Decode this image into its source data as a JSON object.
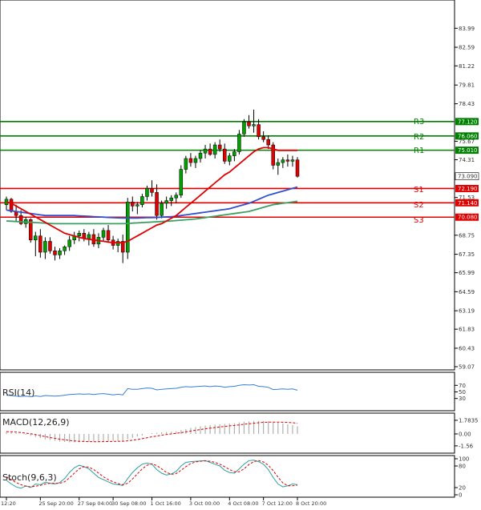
{
  "chart_data": {
    "type": "candlestick",
    "main": {
      "ylim": [
        59.07,
        85.6
      ],
      "y_ticks": [
        83.99,
        82.59,
        81.22,
        79.81,
        78.43,
        75.67,
        74.31,
        71.53,
        68.75,
        67.35,
        65.99,
        64.59,
        63.19,
        61.83,
        60.43,
        59.07
      ],
      "current_price": 73.09,
      "levels": [
        {
          "name": "R3",
          "value": 77.12,
          "color": "#008000"
        },
        {
          "name": "R2",
          "value": 76.06,
          "color": "#008000"
        },
        {
          "name": "R1",
          "value": 75.01,
          "color": "#008000"
        },
        {
          "name": "S1",
          "value": 72.19,
          "color": "#e00000"
        },
        {
          "name": "S2",
          "value": 71.14,
          "color": "#e00000"
        },
        {
          "name": "S3",
          "value": 70.08,
          "color": "#e00000"
        }
      ],
      "level_labels": {
        "R3": "77.120",
        "R2": "76.060",
        "R1": "75.010",
        "S1": "72.190",
        "S2": "71.140",
        "S3": "70.080"
      },
      "current_label": "73.090",
      "candles": [
        [
          71.0,
          71.6,
          70.6,
          71.4
        ],
        [
          71.4,
          71.5,
          70.4,
          70.5
        ],
        [
          70.5,
          71.0,
          69.8,
          70.2
        ],
        [
          70.2,
          70.6,
          69.5,
          69.6
        ],
        [
          69.6,
          70.1,
          69.3,
          69.9
        ],
        [
          69.9,
          70.0,
          68.2,
          68.4
        ],
        [
          68.4,
          69.0,
          67.2,
          68.7
        ],
        [
          68.7,
          69.2,
          67.1,
          67.5
        ],
        [
          67.5,
          68.6,
          67.0,
          68.3
        ],
        [
          68.3,
          68.6,
          67.4,
          67.6
        ],
        [
          67.6,
          67.9,
          66.9,
          67.3
        ],
        [
          67.3,
          67.8,
          67.0,
          67.6
        ],
        [
          67.6,
          68.0,
          67.3,
          67.9
        ],
        [
          67.9,
          68.7,
          67.6,
          68.4
        ],
        [
          68.4,
          69.0,
          68.1,
          68.7
        ],
        [
          68.7,
          69.1,
          68.3,
          68.9
        ],
        [
          68.9,
          69.2,
          68.3,
          68.5
        ],
        [
          68.5,
          69.0,
          68.0,
          68.8
        ],
        [
          68.8,
          69.2,
          67.9,
          68.1
        ],
        [
          68.1,
          68.9,
          67.8,
          68.6
        ],
        [
          68.6,
          69.3,
          68.3,
          69.1
        ],
        [
          69.1,
          69.5,
          68.2,
          68.4
        ],
        [
          68.4,
          68.7,
          67.7,
          68.0
        ],
        [
          68.0,
          68.5,
          67.5,
          68.3
        ],
        [
          68.3,
          68.8,
          66.7,
          67.5
        ],
        [
          67.5,
          71.5,
          67.0,
          71.2
        ],
        [
          71.2,
          71.6,
          70.5,
          70.9
        ],
        [
          70.9,
          71.2,
          70.3,
          71.0
        ],
        [
          71.0,
          71.8,
          70.8,
          71.6
        ],
        [
          71.6,
          72.4,
          71.3,
          72.2
        ],
        [
          72.2,
          72.8,
          71.6,
          71.9
        ],
        [
          71.9,
          72.5,
          69.9,
          70.2
        ],
        [
          70.2,
          71.3,
          70.0,
          71.1
        ],
        [
          71.1,
          71.6,
          70.7,
          71.3
        ],
        [
          71.3,
          71.7,
          70.9,
          71.5
        ],
        [
          71.5,
          71.9,
          71.1,
          71.7
        ],
        [
          71.7,
          73.9,
          71.5,
          73.6
        ],
        [
          73.6,
          74.6,
          73.3,
          74.4
        ],
        [
          74.4,
          74.8,
          73.8,
          74.1
        ],
        [
          74.1,
          74.6,
          73.7,
          74.4
        ],
        [
          74.4,
          75.0,
          74.1,
          74.8
        ],
        [
          74.8,
          75.4,
          74.4,
          75.1
        ],
        [
          75.1,
          75.5,
          74.6,
          74.7
        ],
        [
          74.7,
          75.6,
          74.4,
          75.4
        ],
        [
          75.4,
          75.8,
          74.9,
          75.1
        ],
        [
          75.1,
          75.5,
          74.0,
          74.2
        ],
        [
          74.2,
          74.8,
          73.9,
          74.6
        ],
        [
          74.6,
          75.1,
          74.2,
          74.9
        ],
        [
          74.9,
          76.5,
          74.7,
          76.2
        ],
        [
          76.2,
          77.3,
          76.0,
          77.1
        ],
        [
          77.1,
          77.6,
          76.6,
          76.8
        ],
        [
          76.8,
          78.0,
          76.3,
          76.9
        ],
        [
          76.9,
          77.3,
          75.8,
          76.0
        ],
        [
          76.0,
          76.4,
          75.6,
          75.8
        ],
        [
          75.8,
          76.1,
          75.1,
          75.4
        ],
        [
          75.4,
          75.6,
          73.6,
          73.9
        ],
        [
          73.9,
          74.4,
          73.2,
          74.1
        ],
        [
          74.1,
          74.5,
          73.7,
          74.3
        ],
        [
          74.3,
          74.7,
          73.8,
          74.2
        ],
        [
          74.2,
          74.6,
          73.8,
          74.3
        ],
        [
          74.3,
          74.5,
          73.0,
          73.09
        ]
      ],
      "ma_red": [
        71.2,
        71.1,
        70.9,
        70.7,
        70.5,
        70.3,
        70.1,
        69.9,
        69.7,
        69.5,
        69.3,
        69.1,
        68.9,
        68.8,
        68.7,
        68.6,
        68.5,
        68.45,
        68.4,
        68.35,
        68.3,
        68.25,
        68.2,
        68.2,
        68.2,
        68.3,
        68.5,
        68.7,
        68.9,
        69.1,
        69.3,
        69.5,
        69.6,
        69.8,
        70.0,
        70.2,
        70.5,
        70.8,
        71.1,
        71.4,
        71.7,
        72.0,
        72.3,
        72.6,
        72.9,
        73.2,
        73.4,
        73.7,
        74.0,
        74.3,
        74.6,
        74.9,
        75.1,
        75.2,
        75.2,
        75.1,
        75.0,
        75.0,
        75.0,
        75.0,
        75.0
      ],
      "ma_blue": [
        70.6,
        70.55,
        70.5,
        70.45,
        70.4,
        70.35,
        70.3,
        70.25,
        70.2,
        70.2,
        70.2,
        70.2,
        70.2,
        70.2,
        70.2,
        70.18,
        70.16,
        70.14,
        70.12,
        70.1,
        70.08,
        70.06,
        70.04,
        70.03,
        70.02,
        70.02,
        70.02,
        70.02,
        70.03,
        70.04,
        70.05,
        70.06,
        70.08,
        70.1,
        70.12,
        70.15,
        70.2,
        70.25,
        70.3,
        70.35,
        70.4,
        70.45,
        70.5,
        70.55,
        70.6,
        70.65,
        70.7,
        70.8,
        70.9,
        71.0,
        71.1,
        71.25,
        71.4,
        71.55,
        71.7,
        71.8,
        71.9,
        72.0,
        72.1,
        72.2,
        72.3
      ],
      "ma_green": [
        69.8,
        69.78,
        69.76,
        69.74,
        69.72,
        69.7,
        69.68,
        69.66,
        69.64,
        69.62,
        69.6,
        69.6,
        69.6,
        69.6,
        69.6,
        69.6,
        69.6,
        69.6,
        69.6,
        69.6,
        69.6,
        69.6,
        69.6,
        69.6,
        69.6,
        69.62,
        69.64,
        69.66,
        69.68,
        69.7,
        69.72,
        69.74,
        69.76,
        69.78,
        69.8,
        69.83,
        69.86,
        69.89,
        69.92,
        69.95,
        70.0,
        70.05,
        70.1,
        70.15,
        70.2,
        70.25,
        70.3,
        70.35,
        70.4,
        70.45,
        70.5,
        70.6,
        70.7,
        70.8,
        70.9,
        71.0,
        71.05,
        71.1,
        71.15,
        71.2,
        71.25
      ]
    },
    "rsi": {
      "label": "RSI(14)",
      "ylim": [
        0,
        100
      ],
      "y_ticks": [
        "70",
        "50",
        "30"
      ],
      "tick_values": [
        70,
        50,
        30
      ],
      "values": [
        40,
        39,
        37,
        36,
        37,
        35,
        38,
        36,
        39,
        38,
        37,
        38,
        40,
        42,
        43,
        44,
        43,
        44,
        42,
        44,
        45,
        43,
        41,
        43,
        41,
        60,
        58,
        58,
        60,
        62,
        61,
        56,
        58,
        59,
        60,
        61,
        64,
        66,
        65,
        66,
        67,
        68,
        66,
        68,
        67,
        64,
        66,
        67,
        70,
        72,
        71,
        72,
        67,
        66,
        64,
        57,
        58,
        59,
        58,
        59,
        55
      ]
    },
    "macd": {
      "label": "MACD(12,26,9)",
      "y_ticks": [
        "1.7835",
        "0.00",
        "-1.56"
      ],
      "tick_values": [
        1.7835,
        0.0,
        -1.56
      ],
      "ylim": [
        -2.2,
        2.3
      ],
      "bars": [
        0.25,
        0.2,
        0.1,
        0.0,
        -0.1,
        -0.25,
        -0.4,
        -0.55,
        -0.7,
        -0.8,
        -0.9,
        -1.0,
        -1.05,
        -1.1,
        -1.1,
        -1.1,
        -1.05,
        -1.05,
        -1.0,
        -1.0,
        -0.95,
        -0.95,
        -0.9,
        -0.9,
        -0.9,
        -0.7,
        -0.5,
        -0.35,
        -0.2,
        0.0,
        0.1,
        0.15,
        0.2,
        0.25,
        0.3,
        0.35,
        0.5,
        0.65,
        0.8,
        0.9,
        1.0,
        1.1,
        1.15,
        1.2,
        1.25,
        1.3,
        1.35,
        1.4,
        1.5,
        1.6,
        1.65,
        1.7,
        1.7,
        1.7,
        1.65,
        1.55,
        1.45,
        1.35,
        1.25,
        1.15,
        1.0
      ],
      "signal": [
        0.3,
        0.28,
        0.24,
        0.18,
        0.1,
        0.02,
        -0.1,
        -0.22,
        -0.35,
        -0.47,
        -0.58,
        -0.68,
        -0.77,
        -0.85,
        -0.91,
        -0.96,
        -0.99,
        -1.01,
        -1.02,
        -1.02,
        -1.01,
        -1.0,
        -0.98,
        -0.96,
        -0.95,
        -0.9,
        -0.82,
        -0.73,
        -0.62,
        -0.5,
        -0.38,
        -0.27,
        -0.17,
        -0.08,
        0.0,
        0.08,
        0.17,
        0.27,
        0.37,
        0.47,
        0.57,
        0.67,
        0.76,
        0.84,
        0.91,
        0.98,
        1.05,
        1.11,
        1.18,
        1.26,
        1.33,
        1.4,
        1.46,
        1.51,
        1.54,
        1.55,
        1.55,
        1.53,
        1.5,
        1.46,
        1.39
      ]
    },
    "stoch": {
      "label": "Stoch(9,6,3)",
      "y_ticks": [
        "100",
        "80",
        "20",
        "0"
      ],
      "tick_values": [
        100,
        80,
        20,
        0
      ],
      "k": [
        40,
        30,
        22,
        18,
        25,
        20,
        30,
        28,
        35,
        32,
        30,
        34,
        45,
        62,
        75,
        82,
        78,
        72,
        60,
        48,
        42,
        36,
        30,
        28,
        26,
        45,
        62,
        75,
        85,
        88,
        85,
        70,
        60,
        55,
        58,
        65,
        80,
        90,
        92,
        93,
        94,
        95,
        90,
        85,
        80,
        68,
        62,
        60,
        72,
        85,
        95,
        96,
        92,
        85,
        70,
        48,
        30,
        22,
        25,
        30,
        28
      ],
      "d": [
        50,
        42,
        34,
        28,
        24,
        22,
        24,
        26,
        30,
        32,
        32,
        32,
        36,
        47,
        60,
        72,
        78,
        77,
        70,
        60,
        50,
        42,
        36,
        31,
        28,
        32,
        44,
        58,
        72,
        82,
        86,
        81,
        72,
        62,
        57,
        59,
        68,
        78,
        87,
        91,
        93,
        94,
        93,
        90,
        85,
        78,
        70,
        64,
        64,
        72,
        84,
        92,
        95,
        91,
        82,
        67,
        49,
        33,
        25,
        25,
        27
      ]
    },
    "x_ticks": [
      "12:20",
      "25 Sep 20:00",
      "27 Sep 04:00",
      "30 Sep 08:00",
      "1 Oct 16:00",
      "3 Oct 00:00",
      "4 Oct 08:00",
      "7 Oct 12:00",
      "8 Oct 20:00"
    ],
    "x_tick_index": [
      0,
      7,
      15,
      22,
      30,
      38,
      46,
      53,
      60
    ]
  }
}
